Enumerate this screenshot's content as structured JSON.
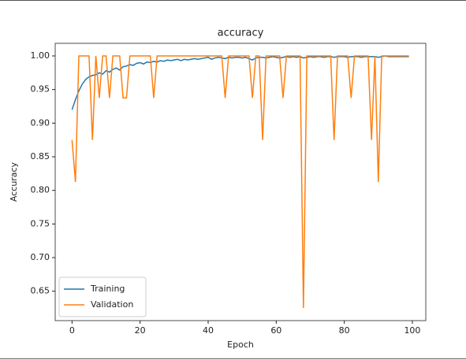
{
  "chart_data": {
    "type": "line",
    "title": "accuracy",
    "xlabel": "Epoch",
    "ylabel": "Accuracy",
    "x": [
      0,
      1,
      2,
      3,
      4,
      5,
      6,
      7,
      8,
      9,
      10,
      11,
      12,
      13,
      14,
      15,
      16,
      17,
      18,
      19,
      20,
      21,
      22,
      23,
      24,
      25,
      26,
      27,
      28,
      29,
      30,
      31,
      32,
      33,
      34,
      35,
      36,
      37,
      38,
      39,
      40,
      41,
      42,
      43,
      44,
      45,
      46,
      47,
      48,
      49,
      50,
      51,
      52,
      53,
      54,
      55,
      56,
      57,
      58,
      59,
      60,
      61,
      62,
      63,
      64,
      65,
      66,
      67,
      68,
      69,
      70,
      71,
      72,
      73,
      74,
      75,
      76,
      77,
      78,
      79,
      80,
      81,
      82,
      83,
      84,
      85,
      86,
      87,
      88,
      89,
      90,
      91,
      92,
      93,
      94,
      95,
      96,
      97,
      98,
      99
    ],
    "series": [
      {
        "name": "Training",
        "color": "#1f77b4",
        "values": [
          0.92,
          0.935,
          0.948,
          0.958,
          0.965,
          0.969,
          0.971,
          0.972,
          0.975,
          0.973,
          0.978,
          0.976,
          0.98,
          0.982,
          0.979,
          0.984,
          0.985,
          0.987,
          0.986,
          0.989,
          0.99,
          0.988,
          0.991,
          0.99,
          0.992,
          0.991,
          0.993,
          0.992,
          0.994,
          0.993,
          0.994,
          0.995,
          0.993,
          0.995,
          0.994,
          0.995,
          0.996,
          0.995,
          0.996,
          0.997,
          0.998,
          0.995,
          0.997,
          0.998,
          0.997,
          0.996,
          0.998,
          0.997,
          0.998,
          0.998,
          0.997,
          0.998,
          0.996,
          0.994,
          0.997,
          0.998,
          0.998,
          0.997,
          0.998,
          0.999,
          0.998,
          0.997,
          0.998,
          0.999,
          0.998,
          0.999,
          0.998,
          0.999,
          0.997,
          0.998,
          0.999,
          0.998,
          0.999,
          0.999,
          0.998,
          0.999,
          0.999,
          0.998,
          0.999,
          0.999,
          0.999,
          0.998,
          0.999,
          0.999,
          0.999,
          0.998,
          0.999,
          0.999,
          0.999,
          0.999,
          0.998,
          0.999,
          1.0,
          0.999,
          0.999,
          0.999,
          0.999,
          0.999,
          0.999,
          0.999
        ]
      },
      {
        "name": "Validation",
        "color": "#ff7f0e",
        "values": [
          0.875,
          0.8125,
          1.0,
          1.0,
          1.0,
          1.0,
          0.875,
          1.0,
          0.9375,
          1.0,
          1.0,
          0.9375,
          1.0,
          1.0,
          1.0,
          0.9375,
          0.9375,
          1.0,
          1.0,
          1.0,
          1.0,
          1.0,
          1.0,
          1.0,
          0.9375,
          1.0,
          1.0,
          1.0,
          1.0,
          1.0,
          1.0,
          1.0,
          1.0,
          1.0,
          1.0,
          1.0,
          1.0,
          1.0,
          1.0,
          1.0,
          1.0,
          1.0,
          1.0,
          1.0,
          1.0,
          0.9375,
          1.0,
          1.0,
          1.0,
          1.0,
          1.0,
          1.0,
          1.0,
          0.9375,
          1.0,
          1.0,
          0.875,
          1.0,
          1.0,
          1.0,
          1.0,
          1.0,
          0.9375,
          1.0,
          1.0,
          1.0,
          1.0,
          1.0,
          0.625,
          1.0,
          1.0,
          1.0,
          1.0,
          1.0,
          1.0,
          1.0,
          1.0,
          0.875,
          1.0,
          1.0,
          1.0,
          1.0,
          0.9375,
          1.0,
          1.0,
          1.0,
          1.0,
          1.0,
          0.875,
          1.0,
          0.8125,
          1.0,
          1.0,
          1.0,
          1.0,
          1.0,
          1.0,
          1.0,
          1.0,
          1.0
        ]
      }
    ],
    "xlim": [
      -4.95,
      103.95
    ],
    "xticks": [
      0,
      20,
      40,
      60,
      80,
      100
    ],
    "ylim": [
      0.60625,
      1.01875
    ],
    "yticks": [
      0.65,
      {
        "value": 0.7,
        "label": "0.70"
      },
      0.75,
      {
        "value": 0.8,
        "label": "0.80"
      },
      0.85,
      {
        "value": 0.9,
        "label": "0.90"
      },
      0.95,
      {
        "value": 1.0,
        "label": "1.00"
      }
    ],
    "legend": "lower left"
  }
}
